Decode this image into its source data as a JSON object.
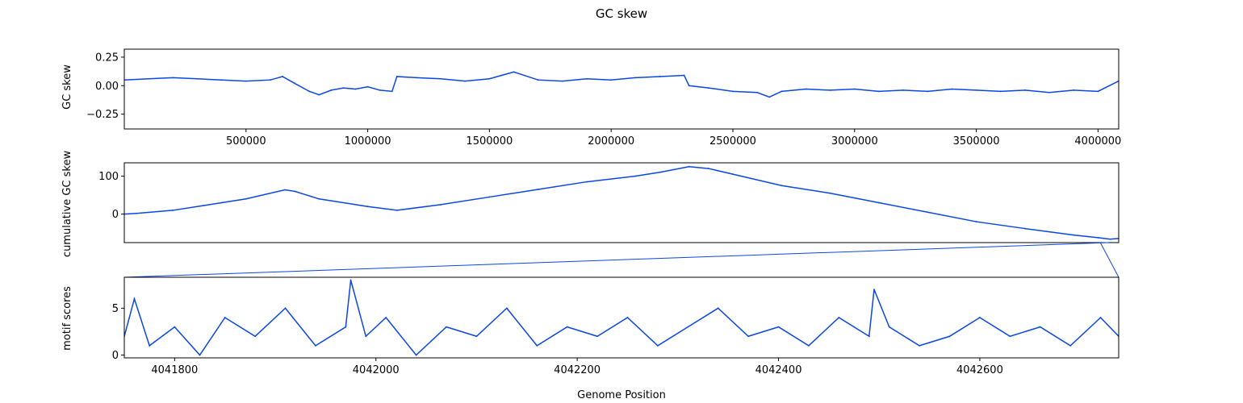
{
  "chart_data": {
    "type": "line",
    "title": "GC skew",
    "xlabel": "Genome Position",
    "line_color": "#0a46e0",
    "grid": false,
    "panels": [
      {
        "id": "gc",
        "ylabel": "GC skew",
        "xlim": [
          1,
          4085000
        ],
        "ylim": [
          -0.38,
          0.32
        ],
        "xticks": [
          500000,
          1000000,
          1500000,
          2000000,
          2500000,
          3000000,
          3500000,
          4000000
        ],
        "xtick_labels": [
          "500000",
          "1000000",
          "1500000",
          "2000000",
          "2500000",
          "3000000",
          "3500000",
          "4000000"
        ],
        "yticks": [
          -0.25,
          0.0,
          0.25
        ],
        "ytick_labels": [
          "−0.25",
          "0.00",
          "0.25"
        ],
        "series": [
          {
            "x": [
              0,
              100000,
              200000,
              300000,
              400000,
              500000,
              600000,
              650000,
              700000,
              760000,
              800000,
              850000,
              900000,
              950000,
              1000000,
              1050000,
              1100000,
              1120000,
              1200000,
              1300000,
              1400000,
              1500000,
              1550000,
              1600000,
              1700000,
              1800000,
              1900000,
              2000000,
              2100000,
              2200000,
              2300000,
              2320000,
              2400000,
              2500000,
              2600000,
              2650000,
              2700000,
              2800000,
              2900000,
              3000000,
              3100000,
              3200000,
              3300000,
              3400000,
              3500000,
              3600000,
              3700000,
              3800000,
              3900000,
              4000000,
              4085000
            ],
            "y": [
              0.05,
              0.06,
              0.07,
              0.06,
              0.05,
              0.04,
              0.05,
              0.08,
              0.02,
              -0.05,
              -0.08,
              -0.04,
              -0.02,
              -0.03,
              -0.01,
              -0.04,
              -0.05,
              0.08,
              0.07,
              0.06,
              0.04,
              0.06,
              0.09,
              0.12,
              0.05,
              0.04,
              0.06,
              0.05,
              0.07,
              0.08,
              0.09,
              0.0,
              -0.02,
              -0.05,
              -0.06,
              -0.1,
              -0.05,
              -0.03,
              -0.04,
              -0.03,
              -0.05,
              -0.04,
              -0.05,
              -0.03,
              -0.04,
              -0.05,
              -0.04,
              -0.06,
              -0.04,
              -0.05,
              0.04
            ]
          }
        ]
      },
      {
        "id": "cum",
        "ylabel": "cumulative GC skew",
        "xlim": [
          1,
          4085000
        ],
        "ylim": [
          -75,
          135
        ],
        "yticks": [
          0,
          100
        ],
        "ytick_labels": [
          "0",
          "100"
        ],
        "series": [
          {
            "x": [
              0,
              50000,
              200000,
              400000,
              500000,
              660000,
              700000,
              800000,
              1000000,
              1120000,
              1300000,
              1500000,
              1700000,
              1900000,
              2100000,
              2200000,
              2320000,
              2400000,
              2500000,
              2700000,
              2900000,
              3100000,
              3300000,
              3500000,
              3700000,
              3900000,
              4000000,
              4050000,
              4085000
            ],
            "y": [
              0,
              2,
              10,
              30,
              40,
              64,
              60,
              40,
              20,
              10,
              25,
              45,
              65,
              85,
              100,
              110,
              125,
              120,
              105,
              75,
              55,
              30,
              5,
              -20,
              -38,
              -55,
              -62,
              -66,
              -64
            ]
          }
        ]
      },
      {
        "id": "motif",
        "ylabel": "motif scores",
        "xlim": [
          4041750,
          4042738
        ],
        "ylim": [
          -0.3,
          8.3
        ],
        "xticks": [
          4041800,
          4042000,
          4042200,
          4042400,
          4042600
        ],
        "xtick_labels": [
          "4041800",
          "4042000",
          "4042200",
          "4042400",
          "4042600"
        ],
        "yticks": [
          0,
          5
        ],
        "ytick_labels": [
          "0",
          "5"
        ],
        "series": [
          {
            "x": [
              4041750,
              4041760,
              4041775,
              4041800,
              4041825,
              4041850,
              4041880,
              4041910,
              4041940,
              4041970,
              4041975,
              4041990,
              4042010,
              4042040,
              4042070,
              4042100,
              4042130,
              4042160,
              4042190,
              4042220,
              4042250,
              4042280,
              4042310,
              4042340,
              4042370,
              4042400,
              4042430,
              4042460,
              4042490,
              4042495,
              4042510,
              4042540,
              4042570,
              4042600,
              4042630,
              4042660,
              4042690,
              4042720,
              4042738
            ],
            "y": [
              2,
              6,
              1,
              3,
              0,
              4,
              2,
              5,
              1,
              3,
              8,
              2,
              4,
              0,
              3,
              2,
              5,
              1,
              3,
              2,
              4,
              1,
              3,
              5,
              2,
              3,
              1,
              4,
              2,
              7,
              3,
              1,
              2,
              4,
              2,
              3,
              1,
              4,
              2
            ]
          }
        ]
      }
    ]
  }
}
